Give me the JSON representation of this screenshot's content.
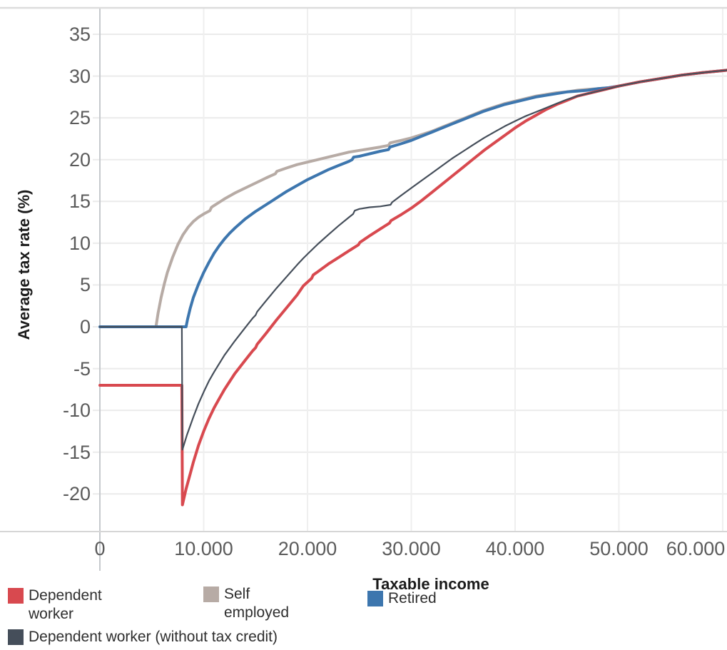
{
  "chart_data": {
    "type": "line",
    "title": "",
    "xlabel": "Taxable income",
    "ylabel": "Average tax rate (%)",
    "grid": true,
    "legend_position": "bottom",
    "x_axis": {
      "title": "Taxable income",
      "range": [
        0,
        60400
      ],
      "ticks": [
        {
          "v": 0,
          "label": "0"
        },
        {
          "v": 10000,
          "label": "10.000"
        },
        {
          "v": 20000,
          "label": "20.000"
        },
        {
          "v": 30000,
          "label": "30.000"
        },
        {
          "v": 40000,
          "label": "40.000"
        },
        {
          "v": 50000,
          "label": "50.000"
        },
        {
          "v": 60000,
          "label": "60.000"
        }
      ]
    },
    "y_axis": {
      "title": "Average tax rate (%)",
      "range": [
        -24.5,
        38.3
      ],
      "ticks": [
        {
          "v": 35,
          "label": "35"
        },
        {
          "v": 30,
          "label": "30"
        },
        {
          "v": 25,
          "label": "25"
        },
        {
          "v": 20,
          "label": "20"
        },
        {
          "v": 15,
          "label": "15"
        },
        {
          "v": 10,
          "label": "10"
        },
        {
          "v": 5,
          "label": "5"
        },
        {
          "v": 0,
          "label": "0"
        },
        {
          "v": -5,
          "label": "-5"
        },
        {
          "v": -10,
          "label": "-10"
        },
        {
          "v": -15,
          "label": "-15"
        },
        {
          "v": -20,
          "label": "-20"
        }
      ]
    },
    "series": [
      {
        "name": "Dependent worker",
        "color": "#d8494f",
        "width": 4,
        "points": [
          [
            0,
            -7
          ],
          [
            7900,
            -7
          ],
          [
            7950,
            -21.3
          ],
          [
            8300,
            -19.4
          ],
          [
            8700,
            -17.6
          ],
          [
            9000,
            -16.2
          ],
          [
            9500,
            -14.2
          ],
          [
            10000,
            -12.5
          ],
          [
            10500,
            -11
          ],
          [
            11000,
            -9.7
          ],
          [
            11500,
            -8.6
          ],
          [
            12000,
            -7.5
          ],
          [
            13000,
            -5.6
          ],
          [
            14000,
            -4
          ],
          [
            14700,
            -2.9
          ],
          [
            15000,
            -2.5
          ],
          [
            15150,
            -2.1
          ],
          [
            16000,
            -0.8
          ],
          [
            17000,
            0.8
          ],
          [
            18000,
            2.3
          ],
          [
            19000,
            3.8
          ],
          [
            19600,
            4.9
          ],
          [
            20400,
            5.8
          ],
          [
            20550,
            6.2
          ],
          [
            21000,
            6.6
          ],
          [
            22000,
            7.5
          ],
          [
            23000,
            8.3
          ],
          [
            24000,
            9.1
          ],
          [
            24900,
            9.8
          ],
          [
            25050,
            10.1
          ],
          [
            26000,
            10.9
          ],
          [
            27000,
            11.7
          ],
          [
            27900,
            12.4
          ],
          [
            28050,
            12.7
          ],
          [
            29000,
            13.4
          ],
          [
            30000,
            14.2
          ],
          [
            31000,
            15.1
          ],
          [
            32000,
            16.1
          ],
          [
            33000,
            17.1
          ],
          [
            34000,
            18.1
          ],
          [
            35000,
            19.1
          ],
          [
            36000,
            20.1
          ],
          [
            37000,
            21.1
          ],
          [
            38000,
            22
          ],
          [
            39000,
            22.9
          ],
          [
            40000,
            23.8
          ],
          [
            41000,
            24.6
          ],
          [
            42000,
            25.3
          ],
          [
            43000,
            26
          ],
          [
            44000,
            26.6
          ],
          [
            45000,
            27.1
          ],
          [
            46000,
            27.6
          ],
          [
            47000,
            27.9
          ],
          [
            48000,
            28.2
          ],
          [
            49000,
            28.5
          ],
          [
            50000,
            28.8
          ],
          [
            52000,
            29.3
          ],
          [
            54000,
            29.7
          ],
          [
            56000,
            30.1
          ],
          [
            58000,
            30.4
          ],
          [
            60400,
            30.7
          ]
        ]
      },
      {
        "name": "Self employed",
        "color": "#b7aba5",
        "width": 4,
        "points": [
          [
            0,
            0
          ],
          [
            5400,
            0
          ],
          [
            5600,
            1.6
          ],
          [
            5900,
            3.5
          ],
          [
            6200,
            5.1
          ],
          [
            6500,
            6.5
          ],
          [
            7000,
            8.3
          ],
          [
            7500,
            9.8
          ],
          [
            8000,
            11
          ],
          [
            8500,
            11.9
          ],
          [
            9000,
            12.6
          ],
          [
            9500,
            13.1
          ],
          [
            10000,
            13.5
          ],
          [
            10600,
            13.9
          ],
          [
            10750,
            14.3
          ],
          [
            11000,
            14.5
          ],
          [
            11500,
            14.9
          ],
          [
            12000,
            15.3
          ],
          [
            13000,
            16
          ],
          [
            14000,
            16.6
          ],
          [
            15000,
            17.2
          ],
          [
            16000,
            17.8
          ],
          [
            16900,
            18.3
          ],
          [
            17050,
            18.6
          ],
          [
            18000,
            19
          ],
          [
            19000,
            19.4
          ],
          [
            20000,
            19.7
          ],
          [
            21000,
            20
          ],
          [
            22000,
            20.3
          ],
          [
            23000,
            20.6
          ],
          [
            24000,
            20.9
          ],
          [
            25000,
            21.1
          ],
          [
            26000,
            21.3
          ],
          [
            27000,
            21.5
          ],
          [
            27800,
            21.7
          ],
          [
            27950,
            22
          ],
          [
            29000,
            22.3
          ],
          [
            30000,
            22.6
          ],
          [
            31000,
            23
          ],
          [
            32000,
            23.4
          ],
          [
            33000,
            23.9
          ],
          [
            34000,
            24.4
          ],
          [
            35000,
            24.9
          ],
          [
            36000,
            25.4
          ],
          [
            37000,
            25.9
          ],
          [
            38000,
            26.3
          ],
          [
            39000,
            26.7
          ],
          [
            40000,
            27
          ],
          [
            41000,
            27.3
          ],
          [
            42000,
            27.6
          ],
          [
            43000,
            27.8
          ],
          [
            44000,
            28
          ],
          [
            45000,
            28.1
          ],
          [
            46000,
            28.3
          ],
          [
            47000,
            28.4
          ],
          [
            48000,
            28.5
          ],
          [
            49000,
            28.6
          ],
          [
            50000,
            28.8
          ],
          [
            52000,
            29.3
          ],
          [
            54000,
            29.7
          ],
          [
            56000,
            30.1
          ],
          [
            58000,
            30.4
          ],
          [
            60400,
            30.7
          ]
        ]
      },
      {
        "name": "Retired",
        "color": "#3d76ae",
        "width": 4,
        "points": [
          [
            0,
            0
          ],
          [
            8300,
            0
          ],
          [
            8450,
            0.9
          ],
          [
            8700,
            2.2
          ],
          [
            9000,
            3.5
          ],
          [
            9500,
            5.1
          ],
          [
            10000,
            6.5
          ],
          [
            10500,
            7.7
          ],
          [
            11000,
            8.8
          ],
          [
            11500,
            9.7
          ],
          [
            12000,
            10.5
          ],
          [
            12500,
            11.2
          ],
          [
            13000,
            11.8
          ],
          [
            14000,
            12.9
          ],
          [
            15000,
            13.8
          ],
          [
            16000,
            14.6
          ],
          [
            17000,
            15.4
          ],
          [
            18000,
            16.2
          ],
          [
            19000,
            16.9
          ],
          [
            20000,
            17.6
          ],
          [
            21000,
            18.2
          ],
          [
            22000,
            18.8
          ],
          [
            23000,
            19.3
          ],
          [
            24000,
            19.8
          ],
          [
            24300,
            20
          ],
          [
            24450,
            20.3
          ],
          [
            25000,
            20.4
          ],
          [
            26000,
            20.7
          ],
          [
            27000,
            21
          ],
          [
            27800,
            21.2
          ],
          [
            27950,
            21.5
          ],
          [
            29000,
            21.9
          ],
          [
            30000,
            22.3
          ],
          [
            31000,
            22.8
          ],
          [
            32000,
            23.3
          ],
          [
            33000,
            23.8
          ],
          [
            34000,
            24.3
          ],
          [
            35000,
            24.8
          ],
          [
            36000,
            25.3
          ],
          [
            37000,
            25.8
          ],
          [
            38000,
            26.2
          ],
          [
            39000,
            26.6
          ],
          [
            40000,
            26.9
          ],
          [
            41000,
            27.2
          ],
          [
            42000,
            27.5
          ],
          [
            43000,
            27.7
          ],
          [
            44000,
            27.9
          ],
          [
            45000,
            28.1
          ],
          [
            46000,
            28.2
          ],
          [
            47000,
            28.3
          ],
          [
            48000,
            28.5
          ],
          [
            49000,
            28.6
          ],
          [
            50000,
            28.8
          ],
          [
            52000,
            29.3
          ],
          [
            54000,
            29.7
          ],
          [
            56000,
            30.1
          ],
          [
            58000,
            30.4
          ],
          [
            60400,
            30.7
          ]
        ]
      },
      {
        "name": "Dependent worker (without tax credit)",
        "color": "#454e5a",
        "width": 2.2,
        "points": [
          [
            0,
            0
          ],
          [
            7900,
            0
          ],
          [
            7950,
            -14.7
          ],
          [
            8400,
            -12.9
          ],
          [
            9000,
            -10.8
          ],
          [
            9500,
            -9.2
          ],
          [
            10000,
            -7.8
          ],
          [
            10500,
            -6.5
          ],
          [
            11000,
            -5.4
          ],
          [
            12000,
            -3.4
          ],
          [
            13000,
            -1.7
          ],
          [
            14000,
            -0.1
          ],
          [
            14700,
            1
          ],
          [
            15000,
            1.4
          ],
          [
            15150,
            1.8
          ],
          [
            16000,
            3.1
          ],
          [
            17000,
            4.6
          ],
          [
            18000,
            6
          ],
          [
            19000,
            7.4
          ],
          [
            19600,
            8.2
          ],
          [
            20000,
            8.7
          ],
          [
            21000,
            9.9
          ],
          [
            22000,
            11
          ],
          [
            23000,
            12.1
          ],
          [
            24000,
            13.1
          ],
          [
            24400,
            13.5
          ],
          [
            24550,
            13.9
          ],
          [
            25000,
            14.1
          ],
          [
            26000,
            14.3
          ],
          [
            27000,
            14.4
          ],
          [
            28000,
            14.6
          ],
          [
            28150,
            14.9
          ],
          [
            29000,
            15.7
          ],
          [
            30000,
            16.6
          ],
          [
            31000,
            17.5
          ],
          [
            32000,
            18.4
          ],
          [
            33000,
            19.3
          ],
          [
            34000,
            20.2
          ],
          [
            35000,
            21
          ],
          [
            36000,
            21.8
          ],
          [
            37000,
            22.6
          ],
          [
            38000,
            23.3
          ],
          [
            39000,
            24
          ],
          [
            40000,
            24.6
          ],
          [
            41000,
            25.2
          ],
          [
            42000,
            25.7
          ],
          [
            43000,
            26.2
          ],
          [
            44000,
            26.7
          ],
          [
            45000,
            27.2
          ],
          [
            46000,
            27.6
          ],
          [
            47000,
            27.9
          ],
          [
            48000,
            28.2
          ],
          [
            49000,
            28.5
          ],
          [
            50000,
            28.8
          ],
          [
            52000,
            29.3
          ],
          [
            54000,
            29.7
          ],
          [
            56000,
            30.1
          ],
          [
            58000,
            30.4
          ],
          [
            60400,
            30.7
          ]
        ]
      }
    ]
  },
  "legend": {
    "entries": [
      {
        "label": "Dependent\nworker",
        "color": "#d8494f"
      },
      {
        "label": "Self\nemployed",
        "color": "#b7aba5"
      },
      {
        "label": "Retired",
        "color": "#3d76ae"
      },
      {
        "label": "Dependent worker (without tax credit)",
        "color": "#454e5a"
      }
    ]
  }
}
